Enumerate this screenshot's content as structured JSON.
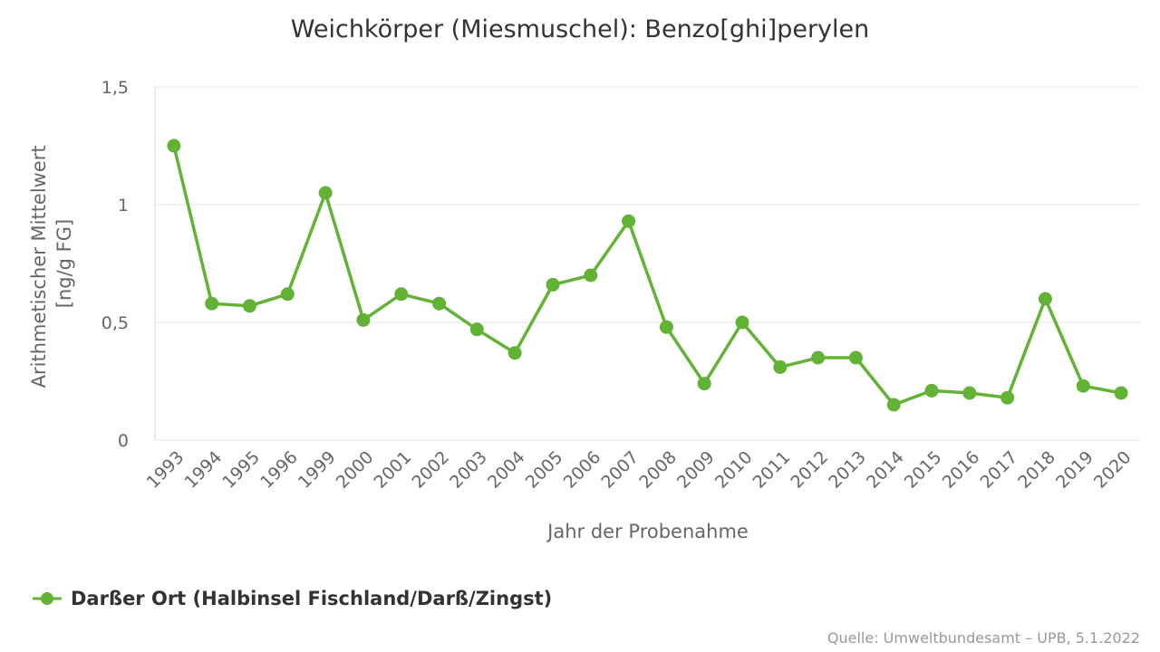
{
  "chart_data": {
    "type": "line",
    "title": "Weichkörper (Miesmuschel): Benzo[ghi]perylen",
    "xlabel": "Jahr der Probenahme",
    "ylabel": [
      "Arithmetischer Mittelwert",
      "[ng/g FG]"
    ],
    "ylim": [
      0,
      1.5
    ],
    "yticks": [
      {
        "value": 0,
        "label": "0"
      },
      {
        "value": 0.5,
        "label": "0,5"
      },
      {
        "value": 1,
        "label": "1"
      },
      {
        "value": 1.5,
        "label": "1,5"
      }
    ],
    "grid": true,
    "legend_position": "bottom-left",
    "categories": [
      "1993",
      "1994",
      "1995",
      "1996",
      "1999",
      "2000",
      "2001",
      "2002",
      "2003",
      "2004",
      "2005",
      "2006",
      "2007",
      "2008",
      "2009",
      "2010",
      "2011",
      "2012",
      "2013",
      "2014",
      "2015",
      "2016",
      "2017",
      "2018",
      "2019",
      "2020"
    ],
    "series": [
      {
        "name": "Darßer Ort (Halbinsel Fischland/Darß/Zingst)",
        "color": "#62b335",
        "values": [
          1.25,
          0.58,
          0.57,
          0.62,
          1.05,
          0.51,
          0.62,
          0.58,
          0.47,
          0.37,
          0.66,
          0.7,
          0.93,
          0.48,
          0.24,
          0.5,
          0.31,
          0.35,
          0.35,
          0.15,
          0.21,
          0.2,
          0.18,
          0.6,
          0.23,
          0.2
        ]
      }
    ]
  },
  "credits": "Quelle: Umweltbundesamt – UPB, 5.1.2022"
}
